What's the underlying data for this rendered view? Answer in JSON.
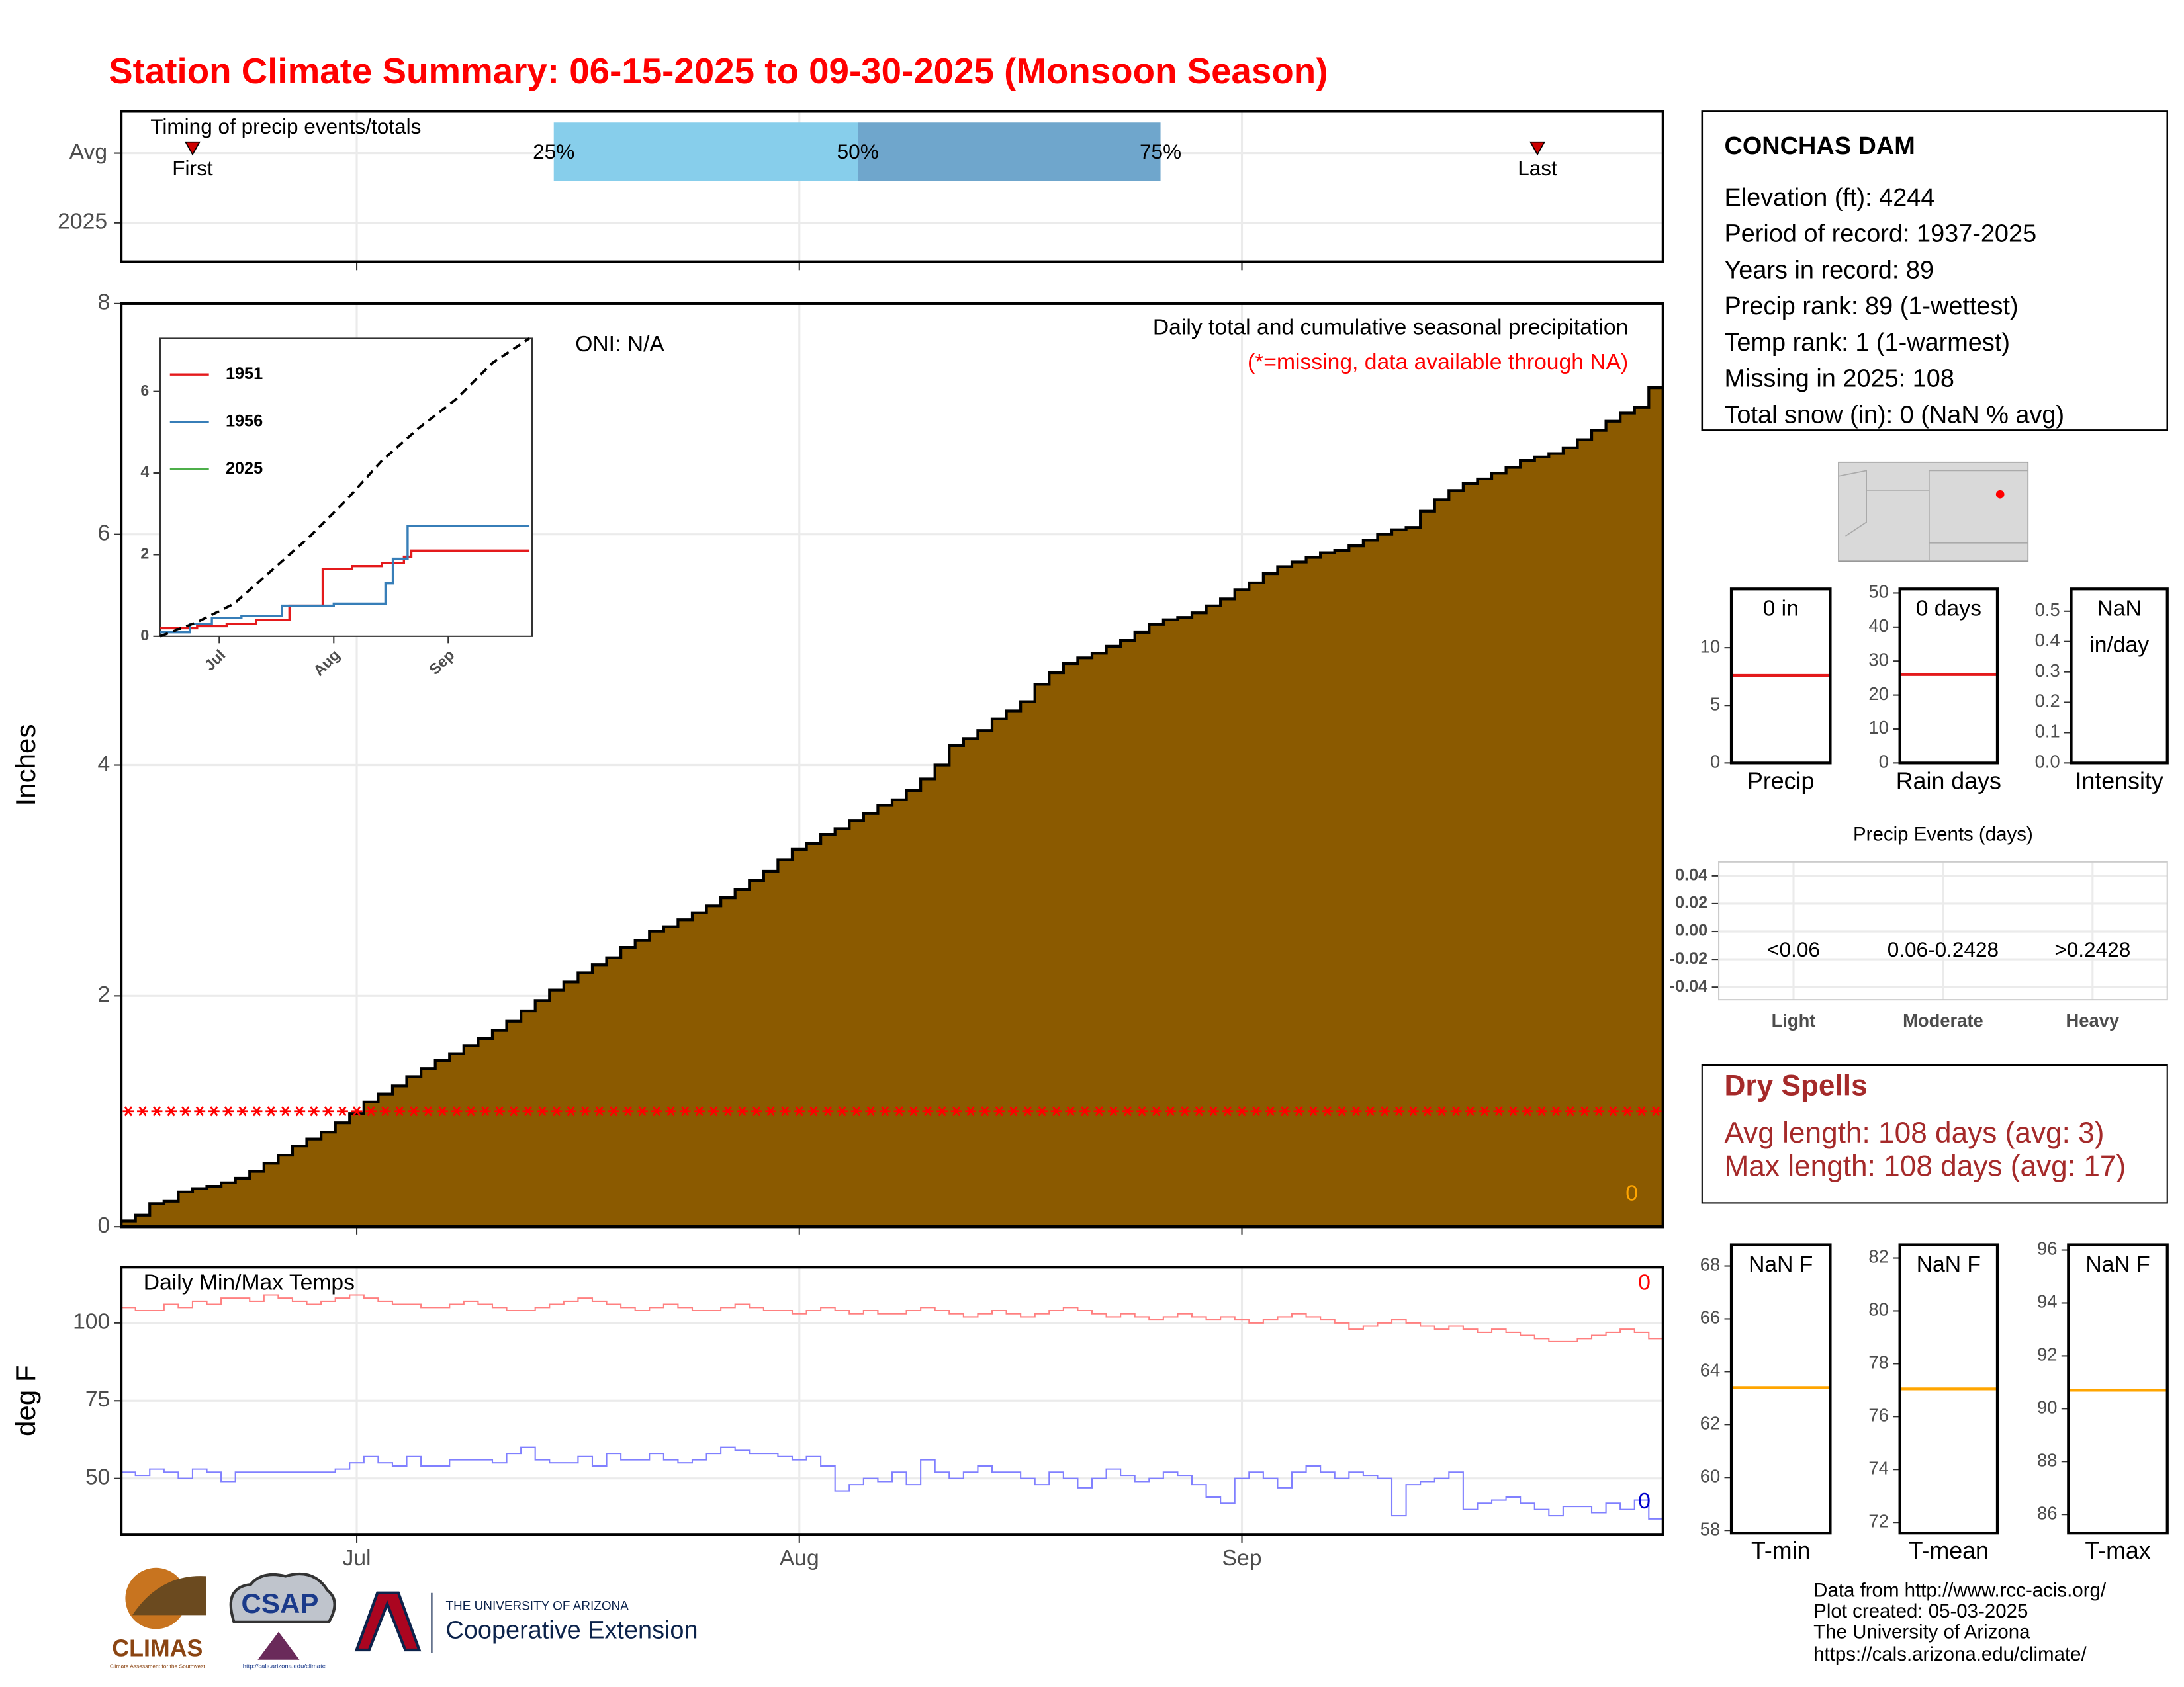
{
  "title": "Station Climate Summary: 06-15-2025 to 09-30-2025 (Monsoon Season)",
  "x_axis": {
    "xlim": [
      -0.5,
      107.5
    ],
    "xticks": [
      {
        "value": 16,
        "label": "Jul"
      },
      {
        "value": 47,
        "label": "Aug"
      },
      {
        "value": 78,
        "label": "Sep"
      }
    ]
  },
  "chart_data": [
    {
      "type": "timing",
      "title": "Timing of precip events/totals",
      "categories": [
        "Avg",
        "2025"
      ],
      "quantiles": [
        {
          "label": "25%",
          "x": 29.8
        },
        {
          "label": "50%",
          "x": 51.1
        },
        {
          "label": "75%",
          "x": 72.3
        }
      ],
      "colors": [
        "#87ceeb",
        "#6fa6cc"
      ],
      "markers": [
        {
          "label": "First",
          "x": 4.5
        },
        {
          "label": "Last",
          "x": 98.7
        }
      ],
      "marker_color": "#cc0000"
    },
    {
      "type": "step_area",
      "ylabel": "Inches",
      "subtitle": "Daily total and cumulative seasonal precipitation",
      "note": "(*=missing, data available through NA)",
      "note_color": "#ff0000",
      "oni": "ONI: N/A",
      "count_label": "0",
      "count_color": "#ffa500",
      "ylim": [
        0,
        8
      ],
      "yticks": [
        0,
        2,
        4,
        6,
        8
      ],
      "grid": true,
      "series": [
        {
          "color": "#8b5a00",
          "values": [
            0.05,
            0.1,
            0.2,
            0.22,
            0.3,
            0.33,
            0.35,
            0.38,
            0.42,
            0.48,
            0.55,
            0.62,
            0.7,
            0.76,
            0.82,
            0.9,
            0.98,
            1.08,
            1.15,
            1.22,
            1.3,
            1.37,
            1.44,
            1.5,
            1.57,
            1.63,
            1.7,
            1.78,
            1.87,
            1.96,
            2.05,
            2.12,
            2.2,
            2.27,
            2.33,
            2.42,
            2.48,
            2.56,
            2.6,
            2.66,
            2.72,
            2.78,
            2.85,
            2.92,
            3.0,
            3.08,
            3.18,
            3.27,
            3.32,
            3.4,
            3.45,
            3.52,
            3.58,
            3.65,
            3.7,
            3.78,
            3.88,
            4.0,
            4.17,
            4.23,
            4.3,
            4.4,
            4.47,
            4.55,
            4.7,
            4.8,
            4.88,
            4.93,
            4.97,
            5.03,
            5.08,
            5.15,
            5.22,
            5.26,
            5.28,
            5.32,
            5.38,
            5.44,
            5.52,
            5.58,
            5.66,
            5.72,
            5.76,
            5.8,
            5.84,
            5.86,
            5.9,
            5.95,
            6.0,
            6.04,
            6.06,
            6.2,
            6.3,
            6.38,
            6.44,
            6.48,
            6.53,
            6.58,
            6.64,
            6.67,
            6.7,
            6.75,
            6.82,
            6.9,
            6.98,
            7.05,
            7.1,
            7.27
          ]
        }
      ],
      "missing": {
        "color": "#ff0000",
        "values": [
          1,
          1,
          1,
          1,
          1,
          1,
          1,
          1,
          1,
          1,
          1,
          1,
          1,
          1,
          1,
          1,
          1,
          1,
          1,
          1,
          1,
          1,
          1,
          1,
          1,
          1,
          1,
          1,
          1,
          1,
          1,
          1,
          1,
          1,
          1,
          1,
          1,
          1,
          1,
          1,
          1,
          1,
          1,
          1,
          1,
          1,
          1,
          1,
          1,
          1,
          1,
          1,
          1,
          1,
          1,
          1,
          1,
          1,
          1,
          1,
          1,
          1,
          1,
          1,
          1,
          1,
          1,
          1,
          1,
          1,
          1,
          1,
          1,
          1,
          1,
          1,
          1,
          1,
          1,
          1,
          1,
          1,
          1,
          1,
          1,
          1,
          1,
          1,
          1,
          1,
          1,
          1,
          1,
          1,
          1,
          1,
          1,
          1,
          1,
          1,
          1,
          1,
          1,
          1,
          1,
          1,
          1,
          1
        ]
      }
    },
    {
      "type": "line",
      "xlim": [
        0,
        100.7
      ],
      "xticks": [
        {
          "value": 16,
          "label": "Jul"
        },
        {
          "value": 47,
          "label": "Aug"
        },
        {
          "value": 78,
          "label": "Sep"
        }
      ],
      "ylim": [
        0,
        7.3
      ],
      "yticks": [
        0,
        2,
        4,
        6
      ],
      "series": [
        {
          "name": "1951",
          "color": "#e41a1c",
          "x": [
            0,
            10,
            18,
            26,
            35,
            44,
            52,
            60,
            66,
            68,
            100
          ],
          "values": [
            0.2,
            0.25,
            0.3,
            0.4,
            0.75,
            1.65,
            1.72,
            1.8,
            1.95,
            2.1,
            2.1
          ]
        },
        {
          "name": "1956",
          "color": "#377eb8",
          "x": [
            0,
            8,
            14,
            22,
            33,
            47,
            61,
            63,
            67,
            100
          ],
          "values": [
            0.1,
            0.3,
            0.45,
            0.5,
            0.75,
            0.8,
            1.3,
            1.9,
            2.7,
            2.7
          ]
        },
        {
          "name": "2025",
          "color": "#4daf4a",
          "x": [],
          "values": []
        },
        {
          "color": "#000000",
          "dashed": true,
          "x": [
            0,
            10,
            20,
            30,
            40,
            50,
            60,
            70,
            80,
            90,
            100
          ],
          "values": [
            0,
            0.35,
            0.8,
            1.6,
            2.4,
            3.3,
            4.3,
            5.1,
            5.8,
            6.7,
            7.3
          ]
        }
      ]
    },
    {
      "type": "step_line",
      "title": "Daily Min/Max Temps",
      "ylabel": "deg F",
      "ylim": [
        32,
        118
      ],
      "yticks": [
        50,
        75,
        100
      ],
      "grid": true,
      "series": [
        {
          "color": "#ff8080",
          "label_color": "#ff0000",
          "count_label": "0",
          "values": [
            105,
            104,
            104,
            106,
            105,
            107,
            106,
            108,
            108,
            107,
            109,
            108,
            107,
            106,
            107,
            108,
            109,
            108,
            107,
            106,
            106,
            105,
            105,
            106,
            107,
            106,
            105,
            104,
            104,
            105,
            106,
            107,
            108,
            107,
            106,
            105,
            104,
            105,
            106,
            105,
            104,
            104,
            105,
            106,
            105,
            104,
            104,
            103,
            104,
            105,
            104,
            103,
            104,
            103,
            103,
            104,
            105,
            104,
            103,
            102,
            103,
            104,
            103,
            102,
            103,
            104,
            105,
            104,
            103,
            102,
            103,
            102,
            101,
            102,
            103,
            102,
            101,
            102,
            101,
            100,
            101,
            102,
            103,
            102,
            101,
            100,
            98,
            99,
            100,
            101,
            100,
            99,
            98,
            99,
            98,
            97,
            98,
            97,
            96,
            95,
            94,
            94,
            95,
            96,
            97,
            98,
            97,
            95
          ]
        },
        {
          "color": "#8080ff",
          "label_color": "#0000cc",
          "count_label": "0",
          "values": [
            52,
            51,
            53,
            52,
            50,
            53,
            52,
            49,
            52,
            52,
            52,
            52,
            52,
            52,
            52,
            53,
            55,
            57,
            55,
            54,
            57,
            54,
            54,
            56,
            56,
            56,
            55,
            58,
            60,
            56,
            55,
            55,
            57,
            54,
            58,
            56,
            56,
            58,
            56,
            55,
            56,
            58,
            60,
            59,
            58,
            58,
            57,
            56,
            57,
            54,
            46,
            48,
            50,
            49,
            52,
            48,
            56,
            52,
            50,
            52,
            54,
            52,
            52,
            50,
            48,
            52,
            50,
            47,
            50,
            53,
            51,
            49,
            50,
            52,
            51,
            48,
            44,
            42,
            50,
            52,
            50,
            47,
            52,
            54,
            52,
            50,
            52,
            51,
            50,
            38,
            48,
            49,
            50,
            52,
            40,
            42,
            43,
            44,
            42,
            40,
            38,
            41,
            41,
            39,
            42,
            40,
            43,
            37
          ]
        }
      ]
    },
    {
      "type": "reference",
      "label": [
        "0 in"
      ],
      "xlabel": "Precip",
      "ylim": [
        0,
        15.1
      ],
      "yticks": [
        0,
        5,
        10
      ],
      "avg": 7.6,
      "avg_color": "#e41a1c"
    },
    {
      "type": "reference",
      "label": [
        "0 days"
      ],
      "xlabel": "Rain days",
      "ylim": [
        0,
        51.2
      ],
      "yticks": [
        0,
        10,
        20,
        30,
        40,
        50
      ],
      "avg": 26,
      "avg_color": "#e41a1c"
    },
    {
      "type": "reference",
      "label": [
        "NaN",
        "in/day"
      ],
      "xlabel": "Intensity",
      "ylim": [
        0,
        0.573
      ],
      "yticks": [
        {
          "value": 0,
          "label": "0.0"
        },
        0.1,
        0.2,
        0.3,
        0.4,
        0.5
      ]
    },
    {
      "type": "bar",
      "title": "Precip Events (days)",
      "categories": [
        "Light",
        "Moderate",
        "Heavy"
      ],
      "thresholds": [
        "<0.06",
        "0.06-0.2428",
        ">0.2428"
      ],
      "values": [
        0,
        0,
        0
      ],
      "color": "#000000",
      "ylim": [
        -0.049,
        0.05
      ],
      "yticks": [
        0.04,
        0.02,
        {
          "value": 0,
          "label": "0.00"
        },
        -0.02,
        -0.04
      ],
      "grid": true
    },
    {
      "type": "reference",
      "label": [
        "NaN F"
      ],
      "xlabel": "T-min",
      "ylim": [
        57.9,
        68.8
      ],
      "yticks": [
        58,
        60,
        62,
        64,
        66,
        68
      ],
      "avg": 63.4,
      "avg_color": "#ffa500"
    },
    {
      "type": "reference",
      "label": [
        "NaN F"
      ],
      "xlabel": "T-mean",
      "ylim": [
        71.6,
        82.5
      ],
      "yticks": [
        72,
        74,
        76,
        78,
        80,
        82
      ],
      "avg": 77.05,
      "avg_color": "#ffa500"
    },
    {
      "type": "reference",
      "label": [
        "NaN F"
      ],
      "xlabel": "T-max",
      "ylim": [
        85.3,
        96.2
      ],
      "yticks": [
        86,
        88,
        90,
        92,
        94,
        96
      ],
      "avg": 90.7,
      "avg_color": "#ffa500"
    }
  ],
  "station": {
    "name": "CONCHAS DAM",
    "lines": [
      "Elevation (ft): 4244",
      "Period of record: 1937-2025",
      "Years in record: 89",
      "Precip rank: 89 (1-wettest)",
      "Temp rank: 1 (1-warmest)",
      "Missing in 2025: 108",
      "Total snow (in): 0 (NaN % avg)"
    ]
  },
  "dry_spells": {
    "title": "Dry Spells",
    "lines": [
      "Avg length: 108 days (avg: 3)",
      "Max length: 108 days (avg: 17)"
    ]
  },
  "footer": [
    "Data from http://www.rcc-acis.org/",
    "Plot created: 05-03-2025",
    "The University of Arizona",
    "https://cals.arizona.edu/climate/"
  ],
  "logos": {
    "climas": "CLIMAS",
    "climas_sub": "Climate Assessment for the Southwest",
    "csap": "CSAP",
    "csap_url": "http://cals.arizona.edu/climate",
    "ua_top": "THE UNIVERSITY OF ARIZONA",
    "ua_main": "Cooperative Extension"
  }
}
